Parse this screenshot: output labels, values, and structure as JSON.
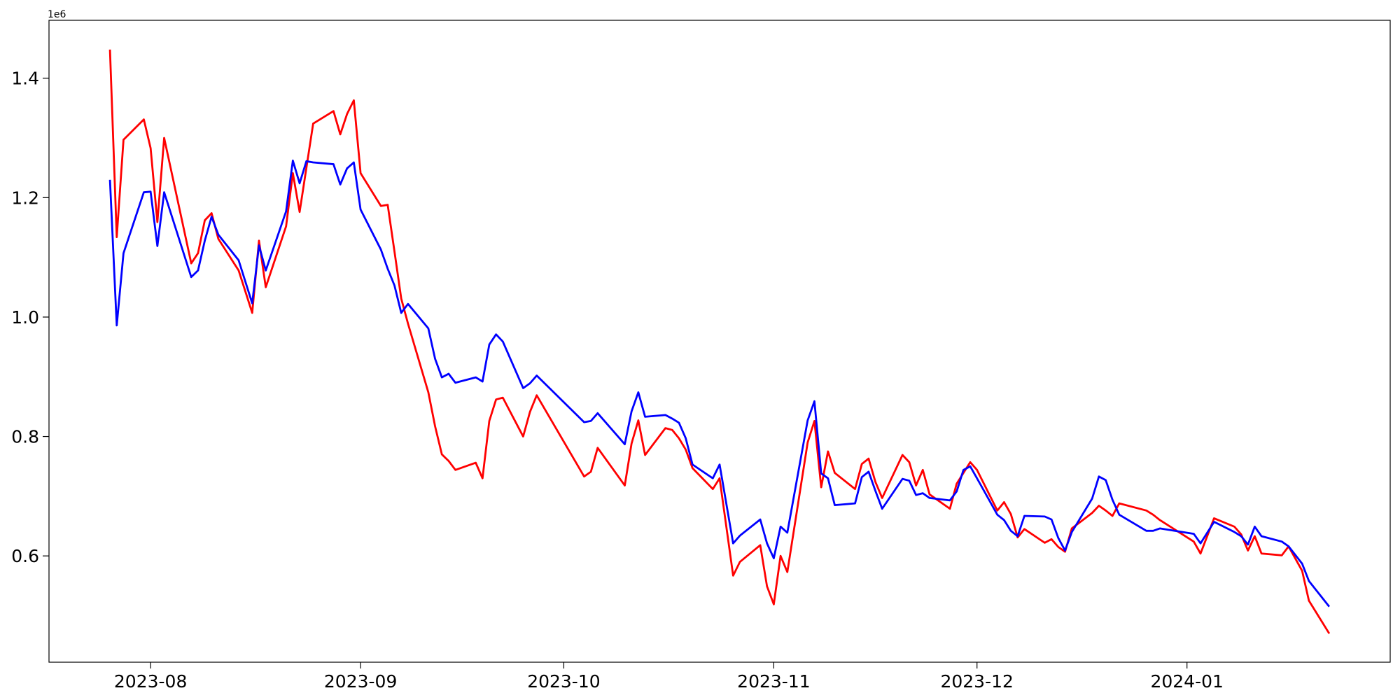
{
  "chart_data": {
    "type": "line",
    "y_offset_label": "1e6",
    "x": [
      "2023-07-26",
      "2023-07-27",
      "2023-07-28",
      "2023-07-31",
      "2023-08-01",
      "2023-08-02",
      "2023-08-03",
      "2023-08-07",
      "2023-08-08",
      "2023-08-09",
      "2023-08-10",
      "2023-08-11",
      "2023-08-14",
      "2023-08-16",
      "2023-08-17",
      "2023-08-18",
      "2023-08-21",
      "2023-08-22",
      "2023-08-23",
      "2023-08-24",
      "2023-08-25",
      "2023-08-28",
      "2023-08-29",
      "2023-08-30",
      "2023-08-31",
      "2023-09-01",
      "2023-09-04",
      "2023-09-05",
      "2023-09-06",
      "2023-09-07",
      "2023-09-08",
      "2023-09-11",
      "2023-09-12",
      "2023-09-13",
      "2023-09-14",
      "2023-09-15",
      "2023-09-18",
      "2023-09-19",
      "2023-09-20",
      "2023-09-21",
      "2023-09-22",
      "2023-09-25",
      "2023-09-26",
      "2023-09-27",
      "2023-10-04",
      "2023-10-05",
      "2023-10-06",
      "2023-10-10",
      "2023-10-11",
      "2023-10-12",
      "2023-10-13",
      "2023-10-16",
      "2023-10-17",
      "2023-10-18",
      "2023-10-19",
      "2023-10-20",
      "2023-10-23",
      "2023-10-24",
      "2023-10-26",
      "2023-10-27",
      "2023-10-30",
      "2023-10-31",
      "2023-11-01",
      "2023-11-02",
      "2023-11-03",
      "2023-11-06",
      "2023-11-07",
      "2023-11-08",
      "2023-11-09",
      "2023-11-10",
      "2023-11-13",
      "2023-11-14",
      "2023-11-15",
      "2023-11-16",
      "2023-11-17",
      "2023-11-20",
      "2023-11-21",
      "2023-11-22",
      "2023-11-23",
      "2023-11-24",
      "2023-11-27",
      "2023-11-28",
      "2023-11-29",
      "2023-11-30",
      "2023-12-01",
      "2023-12-04",
      "2023-12-05",
      "2023-12-06",
      "2023-12-07",
      "2023-12-08",
      "2023-12-11",
      "2023-12-12",
      "2023-12-13",
      "2023-12-14",
      "2023-12-15",
      "2023-12-18",
      "2023-12-19",
      "2023-12-20",
      "2023-12-21",
      "2023-12-22",
      "2023-12-26",
      "2023-12-27",
      "2023-12-28",
      "2024-01-02",
      "2024-01-03",
      "2024-01-05",
      "2024-01-08",
      "2024-01-09",
      "2024-01-10",
      "2024-01-11",
      "2024-01-12",
      "2024-01-15",
      "2024-01-16",
      "2024-01-18",
      "2024-01-19",
      "2024-01-22"
    ],
    "series": [
      {
        "color": "#ff0000",
        "values": [
          1.448,
          1.134,
          1.297,
          1.331,
          1.283,
          1.159,
          1.3,
          1.09,
          1.107,
          1.162,
          1.174,
          1.131,
          1.078,
          1.007,
          1.128,
          1.05,
          1.152,
          1.241,
          1.176,
          1.25,
          1.324,
          1.345,
          1.306,
          1.34,
          1.363,
          1.241,
          1.186,
          1.188,
          1.11,
          1.031,
          0.989,
          0.874,
          0.817,
          0.77,
          0.759,
          0.744,
          0.756,
          0.73,
          0.826,
          0.862,
          0.865,
          0.8,
          0.841,
          0.869,
          0.733,
          0.741,
          0.781,
          0.718,
          0.788,
          0.827,
          0.769,
          0.814,
          0.811,
          0.797,
          0.778,
          0.747,
          0.712,
          0.73,
          0.567,
          0.59,
          0.618,
          0.549,
          0.519,
          0.6,
          0.573,
          0.79,
          0.826,
          0.715,
          0.775,
          0.739,
          0.712,
          0.754,
          0.763,
          0.724,
          0.697,
          0.769,
          0.757,
          0.718,
          0.744,
          0.703,
          0.679,
          0.721,
          0.739,
          0.757,
          0.744,
          0.676,
          0.69,
          0.67,
          0.631,
          0.645,
          0.622,
          0.628,
          0.615,
          0.607,
          0.646,
          0.672,
          0.684,
          0.676,
          0.667,
          0.688,
          0.676,
          0.669,
          0.66,
          0.624,
          0.604,
          0.663,
          0.649,
          0.636,
          0.609,
          0.633,
          0.604,
          0.601,
          0.616,
          0.575,
          0.525,
          0.47
        ]
      },
      {
        "color": "#0000ff",
        "values": [
          1.23,
          0.986,
          1.107,
          1.209,
          1.21,
          1.119,
          1.209,
          1.067,
          1.078,
          1.128,
          1.168,
          1.138,
          1.095,
          1.023,
          1.12,
          1.078,
          1.177,
          1.262,
          1.224,
          1.261,
          1.259,
          1.256,
          1.222,
          1.249,
          1.259,
          1.18,
          1.113,
          1.081,
          1.053,
          1.007,
          1.022,
          0.981,
          0.93,
          0.899,
          0.905,
          0.89,
          0.899,
          0.892,
          0.954,
          0.971,
          0.959,
          0.881,
          0.889,
          0.902,
          0.824,
          0.826,
          0.839,
          0.787,
          0.842,
          0.874,
          0.833,
          0.836,
          0.83,
          0.823,
          0.797,
          0.753,
          0.73,
          0.753,
          0.621,
          0.634,
          0.661,
          0.621,
          0.596,
          0.649,
          0.639,
          0.827,
          0.859,
          0.738,
          0.73,
          0.685,
          0.688,
          0.732,
          0.741,
          0.709,
          0.679,
          0.729,
          0.726,
          0.702,
          0.705,
          0.697,
          0.693,
          0.708,
          0.744,
          0.75,
          0.73,
          0.669,
          0.66,
          0.642,
          0.633,
          0.667,
          0.666,
          0.661,
          0.63,
          0.609,
          0.64,
          0.696,
          0.733,
          0.727,
          0.694,
          0.669,
          0.642,
          0.642,
          0.646,
          0.637,
          0.621,
          0.657,
          0.64,
          0.633,
          0.619,
          0.649,
          0.633,
          0.624,
          0.616,
          0.587,
          0.558,
          0.515
        ]
      }
    ],
    "xlim": [
      "2023-07-17",
      "2024-01-31"
    ],
    "xticks": [
      {
        "value": "2023-08-01",
        "label": "2023-08"
      },
      {
        "value": "2023-09-01",
        "label": "2023-09"
      },
      {
        "value": "2023-10-01",
        "label": "2023-10"
      },
      {
        "value": "2023-11-01",
        "label": "2023-11"
      },
      {
        "value": "2023-12-01",
        "label": "2023-12"
      },
      {
        "value": "2024-01-01",
        "label": "2024-01"
      }
    ],
    "ylim": [
      0.422,
      1.497
    ],
    "yticks": [
      0.6,
      0.8,
      {
        "value": 1,
        "label": "1.0"
      },
      1.2,
      1.4
    ],
    "grid": false
  }
}
